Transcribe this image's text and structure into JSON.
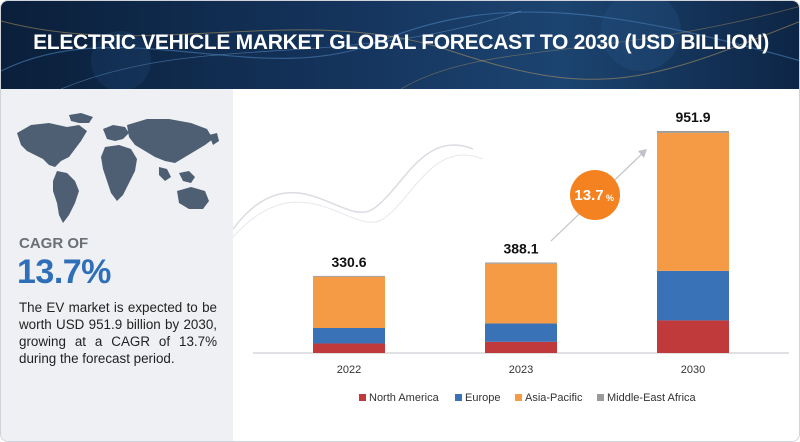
{
  "title": "ELECTRIC VEHICLE MARKET GLOBAL FORECAST TO 2030 (USD BILLION)",
  "left_panel": {
    "cagr_label": "CAGR OF",
    "cagr_value": "13.7%",
    "description": "The EV market is expected to be worth USD 951.9 billion by 2030, growing at a CAGR of 13.7% during the forecast period."
  },
  "colors": {
    "north_america": "#c0393b",
    "europe": "#3a72b8",
    "asia_pacific": "#f59a45",
    "middle_east_africa": "#9a9a9a",
    "cagr_bubble": "#f58220"
  },
  "chart_data": {
    "type": "bar",
    "stacked": true,
    "title": "ELECTRIC VEHICLE MARKET GLOBAL FORECAST TO 2030 (USD BILLION)",
    "categories": [
      "2022",
      "2023",
      "2030"
    ],
    "totals": [
      330.6,
      388.1,
      951.9
    ],
    "total_labels": [
      "330.6",
      "388.1",
      "951.9"
    ],
    "series": [
      {
        "name": "North America",
        "values": [
          40.9,
          48.0,
          139.7
        ]
      },
      {
        "name": "Europe",
        "values": [
          66.3,
          78.7,
          212.5
        ]
      },
      {
        "name": "Asia-Pacific",
        "values": [
          219.4,
          256.3,
          591.7
        ]
      },
      {
        "name": "Middle-East Africa",
        "values": [
          4.0,
          5.1,
          8.0
        ]
      }
    ],
    "annotation": {
      "text": "13.7",
      "suffix": "%",
      "label": "CAGR"
    },
    "legend_position": "bottom",
    "ylim": [
      0,
      951.9
    ]
  }
}
